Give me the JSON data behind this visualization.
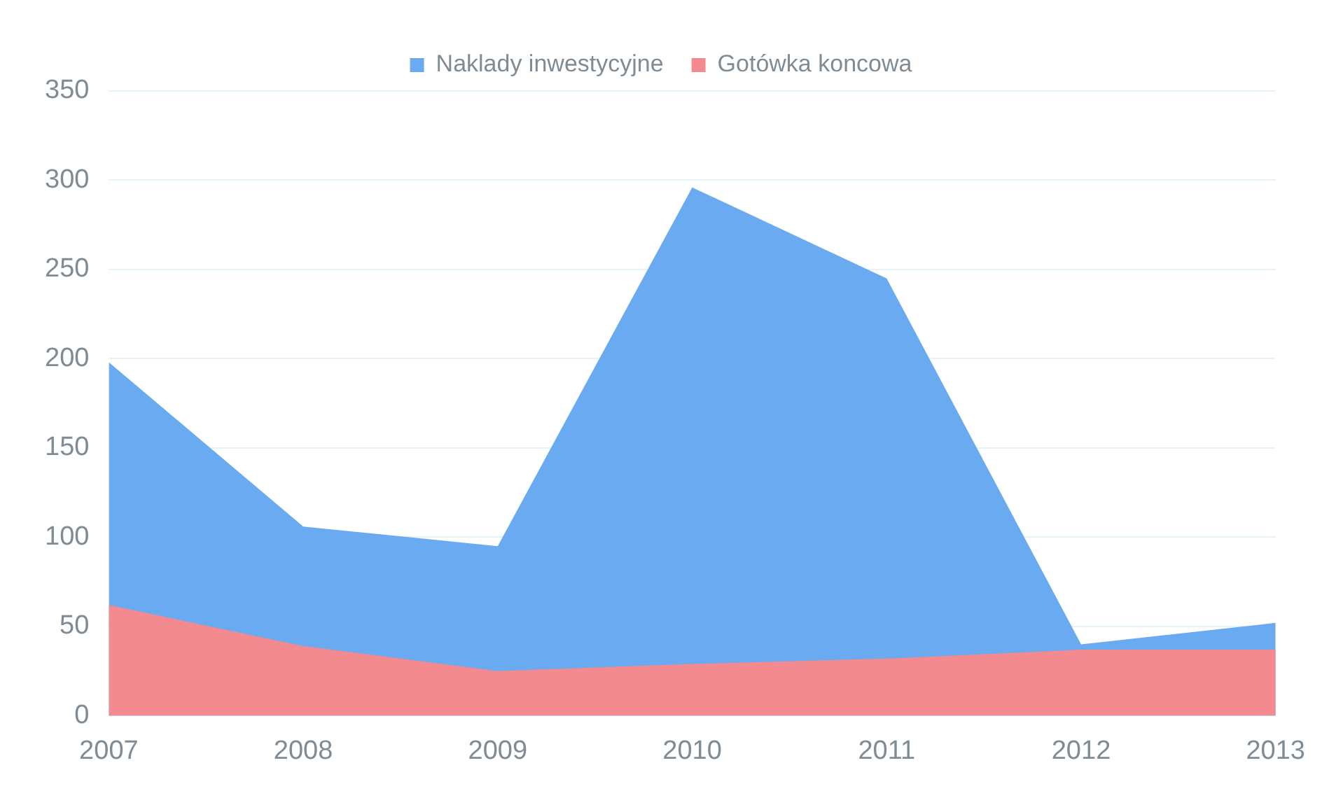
{
  "chart_data": {
    "type": "area",
    "categories": [
      "2007",
      "2008",
      "2009",
      "2010",
      "2011",
      "2012",
      "2013"
    ],
    "series": [
      {
        "name": "Naklady inwestycyjne",
        "color": "#6aaaf0",
        "values": [
          198,
          106,
          95,
          296,
          245,
          40,
          52
        ]
      },
      {
        "name": "Gotówka koncowa",
        "color": "#f28a90",
        "values": [
          62,
          39,
          25,
          29,
          32,
          37,
          37
        ]
      }
    ],
    "ylim": [
      0,
      350
    ],
    "yticks": [
      0,
      50,
      100,
      150,
      200,
      250,
      300,
      350
    ],
    "grid": "y",
    "legend": "top",
    "marker": "none"
  }
}
